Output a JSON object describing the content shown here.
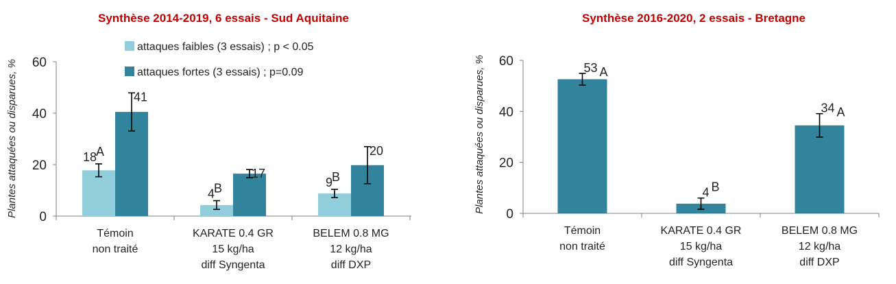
{
  "colors": {
    "title": "#c00000",
    "light": "#92cddc",
    "dark": "#31849b",
    "single": "#31849b",
    "axis": "#7f7f7f",
    "error": "#000000"
  },
  "chart_data": [
    {
      "type": "bar",
      "title": "Synthèse 2014-2019, 6 essais - Sud Aquitaine",
      "ylabel": "Plantes attaquées ou disparues, %",
      "ylim": [
        0,
        60
      ],
      "yticks": [
        "0",
        "20",
        "40",
        "60"
      ],
      "categories": [
        [
          "Témoin",
          "non traité"
        ],
        [
          "KARATE 0.4 GR",
          "15 kg/ha",
          "diff Syngenta"
        ],
        [
          "BELEM 0.8 MG",
          "12 kg/ha",
          "diff DXP"
        ]
      ],
      "legend_position": "top-center",
      "series": [
        {
          "name": "attaques faibles (3 essais) ; p < 0.05",
          "color": "light",
          "values": [
            17.8,
            4.3,
            8.8
          ],
          "error": [
            2.5,
            1.7,
            1.6
          ],
          "value_labels": [
            "18",
            "4",
            "9"
          ],
          "letters": [
            "A",
            "B",
            "B"
          ]
        },
        {
          "name": "attaques fortes (3 essais) ; p=0.09",
          "color": "dark",
          "values": [
            40.5,
            16.5,
            19.8
          ],
          "error": [
            7.4,
            1.6,
            7.2
          ],
          "value_labels": [
            "41",
            "17",
            "20"
          ],
          "letters": [
            "",
            "",
            ""
          ]
        }
      ]
    },
    {
      "type": "bar",
      "title": "Synthèse 2016-2020, 2 essais - Bretagne",
      "ylabel": "Plantes attaquées ou disparues, %",
      "ylim": [
        0,
        60
      ],
      "yticks": [
        "0",
        "20",
        "40",
        "60"
      ],
      "categories": [
        [
          "Témoin",
          "non traité"
        ],
        [
          "KARATE 0.4 GR",
          "15 kg/ha",
          "diff Syngenta"
        ],
        [
          "BELEM 0.8 MG",
          "12 kg/ha",
          "diff DXP"
        ]
      ],
      "series": [
        {
          "color": "single",
          "values": [
            52.6,
            3.8,
            34.5
          ],
          "error": [
            2.3,
            2.2,
            4.6
          ],
          "value_labels": [
            "53",
            "4",
            "34"
          ],
          "letters": [
            "A",
            "B",
            "A"
          ]
        }
      ]
    }
  ]
}
